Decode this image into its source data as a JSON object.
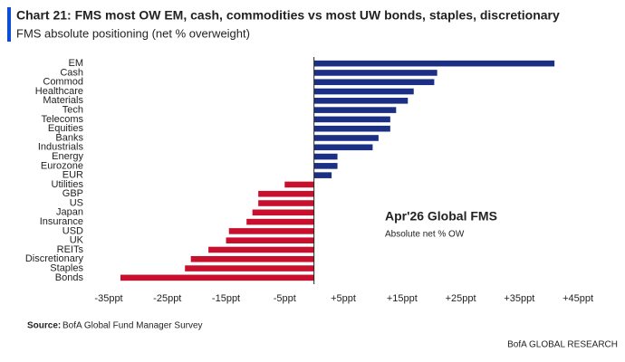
{
  "chart_data": {
    "type": "hbar",
    "title": "Chart 21: FMS most OW EM, cash, commodities vs most UW bonds, staples, discretionary",
    "subtitle": "FMS absolute positioning (net % overweight)",
    "annotation_title": "Apr'26 Global FMS",
    "annotation_text": "Absolute net % OW",
    "categories": [
      "EM",
      "Cash",
      "Commod",
      "Healthcare",
      "Materials",
      "Tech",
      "Telecoms",
      "Equities",
      "Banks",
      "Industrials",
      "Energy",
      "Eurozone",
      "EUR",
      "Utilities",
      "GBP",
      "US",
      "Japan",
      "Insurance",
      "USD",
      "UK",
      "REITs",
      "Discretionary",
      "Staples",
      "Bonds"
    ],
    "values": [
      41,
      21,
      20.5,
      17,
      16,
      14,
      13,
      13,
      11,
      10,
      4,
      4,
      3,
      -5,
      -9.5,
      -9.5,
      -10.5,
      -11.5,
      -14.5,
      -15,
      -18,
      -21,
      -22,
      -33
    ],
    "positive_color": "#1b2f85",
    "negative_color": "#c8102e",
    "xlim": [
      -38,
      47
    ],
    "xticks": [
      {
        "value": -35,
        "label": "-35ppt"
      },
      {
        "value": -25,
        "label": "-25ppt"
      },
      {
        "value": -15,
        "label": "-15ppt"
      },
      {
        "value": -5,
        "label": "-5ppt"
      },
      {
        "value": 5,
        "label": "+5ppt"
      },
      {
        "value": 15,
        "label": "+15ppt"
      },
      {
        "value": 25,
        "label": "+25ppt"
      },
      {
        "value": 35,
        "label": "+35ppt"
      },
      {
        "value": 45,
        "label": "+45ppt"
      }
    ],
    "grid": false,
    "source_label": "Source:",
    "source_text": "BofA Global Fund Manager Survey",
    "footer": "BofA GLOBAL RESEARCH"
  }
}
